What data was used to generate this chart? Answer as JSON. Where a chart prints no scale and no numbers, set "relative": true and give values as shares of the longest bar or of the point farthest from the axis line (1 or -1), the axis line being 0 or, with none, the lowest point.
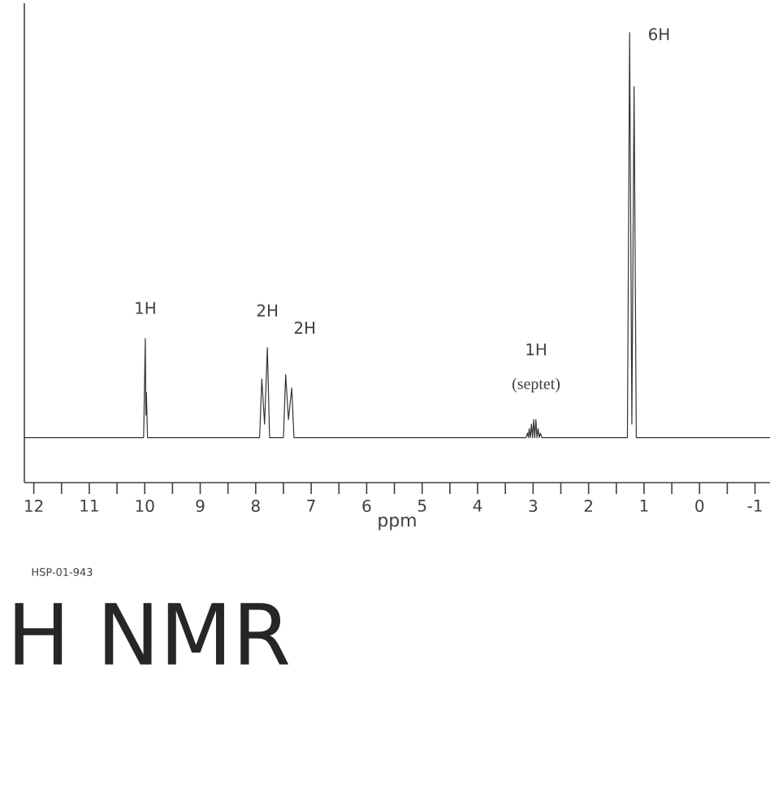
{
  "chart_data": {
    "type": "line",
    "relative": true,
    "xlabel": "ppm",
    "xlim": [
      12.17,
      -1.27
    ],
    "xticks": [
      12,
      {
        "value": 11.5,
        "label": null
      },
      11,
      {
        "value": 10.5,
        "label": null
      },
      10,
      {
        "value": 9.5,
        "label": null
      },
      9,
      {
        "value": 8.5,
        "label": null
      },
      8,
      {
        "value": 7.5,
        "label": null
      },
      7,
      {
        "value": 6.5,
        "label": null
      },
      6,
      {
        "value": 5.5,
        "label": null
      },
      5,
      {
        "value": 4.5,
        "label": null
      },
      4,
      {
        "value": 3.5,
        "label": null
      },
      3,
      {
        "value": 2.5,
        "label": null
      },
      2,
      {
        "value": 1.5,
        "label": null
      },
      1,
      {
        "value": 0.5,
        "label": null
      },
      0,
      {
        "value": -0.5,
        "label": null
      },
      -1
    ],
    "annotations": [
      {
        "text": "1H",
        "x": 9.99,
        "y": 0.32
      },
      {
        "text": "2H",
        "x": 7.79,
        "y": 0.3
      },
      {
        "text": "2H",
        "x": 7.35,
        "y": 0.24
      },
      "1H",
      "(septet)",
      {
        "text": "6H",
        "x": 1.26,
        "y": 1.0
      },
      "HSP-01-943",
      "H NMR"
    ],
    "series": [
      {
        "color": "#333333",
        "x": [
          12.17,
          10.02,
          9.99,
          9.98,
          9.97,
          9.95,
          7.93,
          7.89,
          7.84,
          7.79,
          7.75,
          7.5,
          7.46,
          7.41,
          7.35,
          7.31,
          3.13,
          3.1,
          3.085,
          3.07,
          3.05,
          3.03,
          3.01,
          2.99,
          2.97,
          2.95,
          2.93,
          2.91,
          2.89,
          2.87,
          2.84,
          1.3,
          1.26,
          1.22,
          1.18,
          1.14,
          -1.27
        ],
        "values": [
          0.1,
          0.1,
          0.32,
          0.15,
          0.2,
          0.1,
          0.1,
          0.23,
          0.13,
          0.3,
          0.1,
          0.1,
          0.24,
          0.14,
          0.21,
          0.1,
          0.1,
          0.11,
          0.1,
          0.12,
          0.1,
          0.13,
          0.1,
          0.14,
          0.1,
          0.14,
          0.1,
          0.12,
          0.1,
          0.11,
          0.1,
          0.1,
          1.0,
          0.13,
          0.88,
          0.1,
          0.1
        ]
      }
    ]
  }
}
